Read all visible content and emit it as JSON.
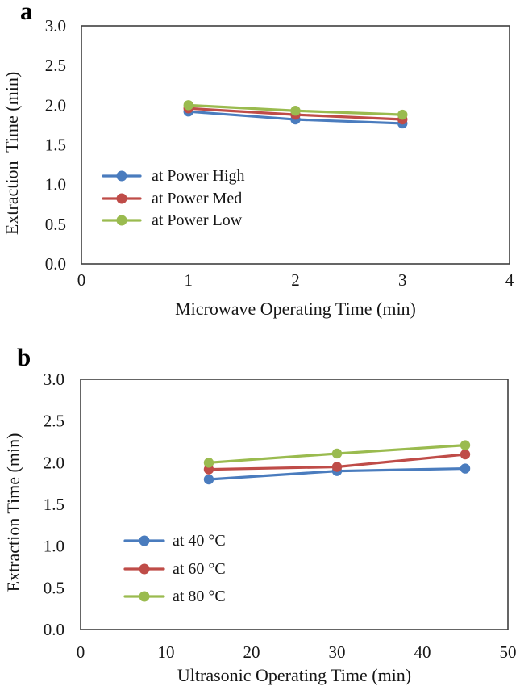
{
  "figure_title": "",
  "chart_data": [
    {
      "type": "line",
      "panel_label": "a",
      "xlabel": "Microwave Operating Time (min)",
      "ylabel": "Extraction  Time (min)",
      "xlim": [
        0,
        4
      ],
      "ylim": [
        0.0,
        3.0
      ],
      "x_ticks": [
        0,
        1,
        2,
        3,
        4
      ],
      "x_tick_labels": [
        "0",
        "1",
        "2",
        "3",
        "4"
      ],
      "y_ticks": [
        0.0,
        0.5,
        1.0,
        1.5,
        2.0,
        2.5,
        3.0
      ],
      "y_tick_labels": [
        "0.0",
        "0.5",
        "1.0",
        "1.5",
        "2.0",
        "2.5",
        "3.0"
      ],
      "grid": false,
      "legend_position": "inside-lower-left",
      "x": [
        1,
        2,
        3
      ],
      "series": [
        {
          "name": "at Power High",
          "color": "#4A7CBE",
          "values": [
            1.92,
            1.82,
            1.77
          ]
        },
        {
          "name": "at Power Med",
          "color": "#BF4C48",
          "values": [
            1.96,
            1.88,
            1.82
          ]
        },
        {
          "name": "at Power Low",
          "color": "#9ABB4F",
          "values": [
            2.0,
            1.93,
            1.88
          ]
        }
      ]
    },
    {
      "type": "line",
      "panel_label": "b",
      "xlabel": "Ultrasonic Operating Time (min)",
      "ylabel": "Extraction Time (min)",
      "xlim": [
        0,
        50
      ],
      "ylim": [
        0.0,
        3.0
      ],
      "x_ticks": [
        0,
        10,
        20,
        30,
        40,
        50
      ],
      "x_tick_labels": [
        "0",
        "10",
        "20",
        "30",
        "40",
        "50"
      ],
      "y_ticks": [
        0.0,
        0.5,
        1.0,
        1.5,
        2.0,
        2.5,
        3.0
      ],
      "y_tick_labels": [
        "0.0",
        "0.5",
        "1.0",
        "1.5",
        "2.0",
        "2.5",
        "3.0"
      ],
      "grid": false,
      "legend_position": "inside-lower-left",
      "x": [
        15,
        30,
        45
      ],
      "series": [
        {
          "name": "at 40 °C",
          "color": "#4A7CBE",
          "values": [
            1.8,
            1.9,
            1.93
          ]
        },
        {
          "name": "at 60 °C",
          "color": "#BF4C48",
          "values": [
            1.92,
            1.95,
            2.1
          ]
        },
        {
          "name": "at 80 °C",
          "color": "#9ABB4F",
          "values": [
            2.0,
            2.11,
            2.21
          ]
        }
      ]
    }
  ],
  "style": {
    "frame_color": "#3F3F3F",
    "text_color": "#161616",
    "background": "#FFFFFF"
  }
}
